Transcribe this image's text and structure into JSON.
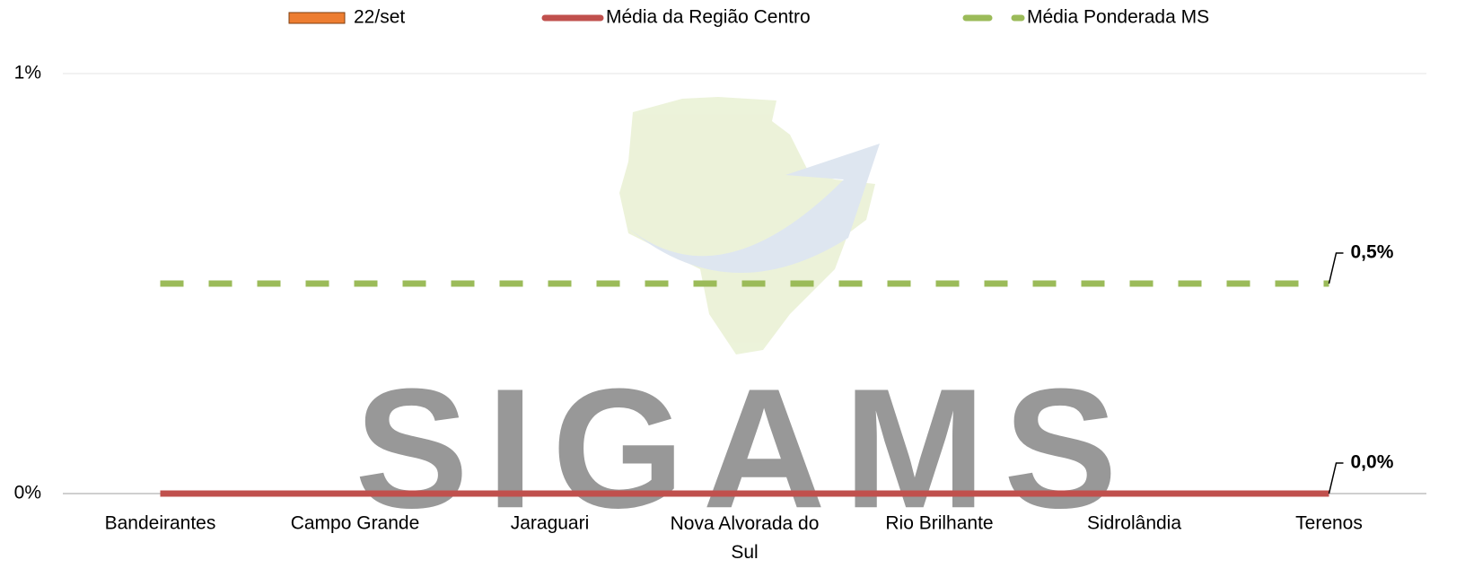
{
  "chart_data": {
    "type": "bar",
    "watermark": "SIGAMS",
    "categories": [
      "Bandeirantes",
      "Campo Grande",
      "Jaraguari",
      "Nova Alvorada do Sul",
      "Rio Brilhante",
      "Sidrolândia",
      "Terenos"
    ],
    "series": [
      {
        "name": "22/set",
        "type": "bar",
        "color": "#ed7d31",
        "values": [
          0,
          0,
          0,
          0,
          0,
          0,
          0
        ]
      },
      {
        "name": "Média da Região Centro",
        "type": "line",
        "color": "#c0504d",
        "values": [
          0,
          0,
          0,
          0,
          0,
          0,
          0
        ],
        "value_labels": [
          null,
          null,
          null,
          null,
          null,
          null,
          "0,0%"
        ]
      },
      {
        "name": "Média Ponderada MS",
        "type": "line",
        "dashed": true,
        "color": "#9bbb59",
        "values": [
          0.5,
          0.5,
          0.5,
          0.5,
          0.5,
          0.5,
          0.5
        ],
        "value_labels": [
          null,
          null,
          null,
          null,
          null,
          null,
          "0,5%"
        ]
      }
    ],
    "ylim": [
      0,
      1
    ],
    "yticks": [
      {
        "value": 0,
        "label": "0%"
      },
      {
        "value": 1,
        "label": "1%"
      }
    ],
    "grid": true,
    "legend": "top"
  }
}
